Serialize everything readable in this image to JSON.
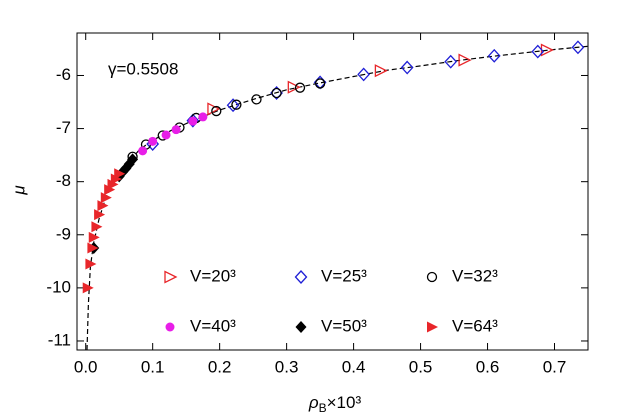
{
  "chart_data": {
    "type": "scatter",
    "annotation": "γ=0.5508",
    "x_label": [
      "ρ",
      "B",
      "×10³"
    ],
    "y_label": "μ",
    "xlim": [
      -0.013,
      0.75
    ],
    "ylim": [
      -11.17,
      -5.2
    ],
    "xticks": [
      {
        "value": 0,
        "label": "0.0"
      },
      0.1,
      0.2,
      0.3,
      0.4,
      0.5,
      0.6,
      0.7
    ],
    "yticks": [
      -11,
      -10,
      -9,
      -8,
      -7,
      -6
    ],
    "fit_line": {
      "color": "#000000",
      "x": [
        0.002,
        0.004,
        0.007,
        0.012,
        0.02,
        0.03,
        0.045,
        0.06,
        0.08,
        0.1,
        0.13,
        0.16,
        0.2,
        0.25,
        0.3,
        0.35,
        0.4,
        0.45,
        0.5,
        0.55,
        0.6,
        0.65,
        0.7,
        0.75
      ],
      "values": [
        -11.17,
        -10.3,
        -9.6,
        -9.15,
        -8.7,
        -8.3,
        -7.95,
        -7.7,
        -7.4,
        -7.22,
        -7.02,
        -6.85,
        -6.65,
        -6.45,
        -6.27,
        -6.14,
        -6.02,
        -5.9,
        -5.82,
        -5.73,
        -5.65,
        -5.58,
        -5.51,
        -5.45
      ]
    },
    "series": [
      {
        "name": "V=20³",
        "color": "#e8262a",
        "marker": "triangle-right-open",
        "x": [
          0.19,
          0.31,
          0.44,
          0.565,
          0.688
        ],
        "values": [
          -6.63,
          -6.22,
          -5.91,
          -5.71,
          -5.52
        ]
      },
      {
        "name": "V=25³",
        "color": "#1f1fd6",
        "marker": "diamond-open",
        "x": [
          0.1,
          0.16,
          0.22,
          0.285,
          0.35,
          0.415,
          0.48,
          0.545,
          0.61,
          0.675,
          0.735
        ],
        "values": [
          -7.29,
          -6.85,
          -6.56,
          -6.33,
          -6.13,
          -5.98,
          -5.85,
          -5.74,
          -5.63,
          -5.55,
          -5.47
        ]
      },
      {
        "name": "V=32³",
        "color": "#000000",
        "marker": "circle-open",
        "x": [
          0.07,
          0.09,
          0.115,
          0.14,
          0.165,
          0.195,
          0.225,
          0.255,
          0.285,
          0.32,
          0.35
        ],
        "values": [
          -7.53,
          -7.3,
          -7.13,
          -6.98,
          -6.8,
          -6.67,
          -6.55,
          -6.45,
          -6.33,
          -6.23,
          -6.15
        ]
      },
      {
        "name": "V=40³",
        "color": "#e81ee8",
        "marker": "circle",
        "x": [
          0.085,
          0.1,
          0.12,
          0.135,
          0.16,
          0.175
        ],
        "values": [
          -7.42,
          -7.24,
          -7.12,
          -7.02,
          -6.86,
          -6.78
        ]
      },
      {
        "name": "V=50³",
        "color": "#000000",
        "marker": "diamond",
        "x": [
          0.012,
          0.05,
          0.055,
          0.06,
          0.065,
          0.07
        ],
        "values": [
          -9.25,
          -7.9,
          -7.82,
          -7.75,
          -7.67,
          -7.58
        ]
      },
      {
        "name": "V=64³",
        "color": "#e8262a",
        "marker": "triangle-right",
        "x": [
          0.003,
          0.007,
          0.01,
          0.012,
          0.016,
          0.02,
          0.025,
          0.03,
          0.035,
          0.04,
          0.045,
          0.05
        ],
        "values": [
          -10.0,
          -9.55,
          -9.25,
          -9.05,
          -8.85,
          -8.62,
          -8.45,
          -8.3,
          -8.15,
          -8.05,
          -7.95,
          -7.85
        ]
      }
    ]
  }
}
